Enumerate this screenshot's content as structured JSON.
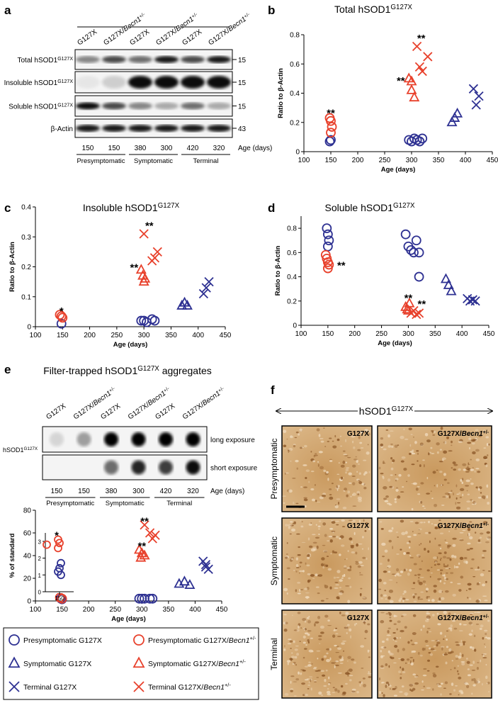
{
  "panel_labels": [
    "a",
    "b",
    "c",
    "d",
    "e",
    "f"
  ],
  "blot_a": {
    "lanes": [
      [
        {
          "text": "G127X"
        }
      ],
      [
        {
          "text": "G127X/"
        },
        {
          "text": "Becn1",
          "style": "italic"
        },
        {
          "text": "+/-",
          "style": "sup"
        }
      ],
      [
        {
          "text": "G127X"
        }
      ],
      [
        {
          "text": "G127X/"
        },
        {
          "text": "Becn1",
          "style": "italic"
        },
        {
          "text": "+/-",
          "style": "sup"
        }
      ],
      [
        {
          "text": "G127X"
        }
      ],
      [
        {
          "text": "G127X/"
        },
        {
          "text": "Becn1",
          "style": "italic"
        },
        {
          "text": "+/-",
          "style": "sup"
        }
      ]
    ],
    "rows": [
      {
        "label": [
          {
            "text": "Total hSOD1"
          },
          {
            "text": "G127X",
            "style": "sup"
          }
        ],
        "mw": "15"
      },
      {
        "label": [
          {
            "text": "Insoluble hSOD1"
          },
          {
            "text": "G127X",
            "style": "sup"
          }
        ],
        "mw": "15"
      },
      {
        "label": [
          {
            "text": "Soluble hSOD1"
          },
          {
            "text": "G127X",
            "style": "sup"
          }
        ],
        "mw": "15"
      },
      {
        "label": [
          {
            "text": "β-Actin"
          }
        ],
        "mw": "43"
      }
    ],
    "ages": [
      "150",
      "150",
      "380",
      "300",
      "420",
      "320"
    ],
    "age_label": "Age (days)",
    "stages": [
      "Presymptomatic",
      "Symptomatic",
      "Terminal"
    ]
  },
  "chart_data": [
    {
      "type": "scatter",
      "title": [
        {
          "text": "Total hSOD1"
        },
        {
          "text": "G127X",
          "style": "sup"
        }
      ],
      "xlabel": "Age (days)",
      "ylabel": "Ratio to β-Actin",
      "xlim": [
        100,
        450
      ],
      "xticks": [
        100,
        150,
        200,
        250,
        300,
        350,
        400,
        450
      ],
      "ylim": [
        0,
        0.8
      ],
      "yticks": [
        0,
        0.2,
        0.4,
        0.6,
        0.8
      ],
      "series": [
        {
          "x": [
            148,
            150,
            295,
            300,
            305,
            310,
            315,
            320
          ],
          "values": [
            0.07,
            0.08,
            0.08,
            0.07,
            0.09,
            0.08,
            0.07,
            0.09
          ]
        },
        {
          "x": [
            148,
            150,
            152,
            150
          ],
          "values": [
            0.23,
            0.21,
            0.17,
            0.13
          ]
        },
        {
          "x": [
            375,
            380,
            385
          ],
          "values": [
            0.2,
            0.23,
            0.26
          ]
        },
        {
          "x": [
            295,
            300,
            300,
            305
          ],
          "values": [
            0.5,
            0.48,
            0.42,
            0.37
          ]
        },
        {
          "x": [
            415,
            420,
            425
          ],
          "values": [
            0.43,
            0.32,
            0.38
          ]
        },
        {
          "x": [
            310,
            315,
            320,
            330
          ],
          "values": [
            0.72,
            0.58,
            0.55,
            0.65
          ]
        }
      ],
      "annotations": [
        {
          "text": "**",
          "x": 150,
          "y": 0.27
        },
        {
          "text": "**",
          "x": 318,
          "y": 0.78
        },
        {
          "text": "**",
          "x": 280,
          "y": 0.49
        }
      ]
    },
    {
      "type": "scatter",
      "title": [
        {
          "text": "Insoluble hSOD1"
        },
        {
          "text": "G127X",
          "style": "sup"
        }
      ],
      "xlabel": "Age (days)",
      "ylabel": "Ratio to β-Actin",
      "xlim": [
        100,
        450
      ],
      "xticks": [
        100,
        150,
        200,
        250,
        300,
        350,
        400,
        450
      ],
      "ylim": [
        0,
        0.4
      ],
      "yticks": [
        0,
        0.1,
        0.2,
        0.3,
        0.4
      ],
      "series": [
        {
          "x": [
            148,
            295,
            300,
            305,
            315,
            320
          ],
          "values": [
            0.01,
            0.02,
            0.02,
            0.015,
            0.025,
            0.02
          ]
        },
        {
          "x": [
            145,
            148,
            150
          ],
          "values": [
            0.04,
            0.035,
            0.03
          ]
        },
        {
          "x": [
            370,
            375,
            380
          ],
          "values": [
            0.07,
            0.08,
            0.07
          ]
        },
        {
          "x": [
            295,
            298,
            300,
            302
          ],
          "values": [
            0.19,
            0.17,
            0.15,
            0.16
          ]
        },
        {
          "x": [
            410,
            415,
            420
          ],
          "values": [
            0.11,
            0.13,
            0.15
          ]
        },
        {
          "x": [
            300,
            315,
            320,
            325
          ],
          "values": [
            0.31,
            0.22,
            0.23,
            0.25
          ]
        }
      ],
      "annotations": [
        {
          "text": "*",
          "x": 148,
          "y": 0.055
        },
        {
          "text": "**",
          "x": 310,
          "y": 0.34
        },
        {
          "text": "**",
          "x": 282,
          "y": 0.2
        }
      ]
    },
    {
      "type": "scatter",
      "title": [
        {
          "text": "Soluble hSOD1"
        },
        {
          "text": "G127X",
          "style": "sup"
        }
      ],
      "xlabel": "Age (days)",
      "ylabel": "Ratio to β-Actin",
      "xlim": [
        100,
        450
      ],
      "xticks": [
        100,
        150,
        200,
        250,
        300,
        350,
        400,
        450
      ],
      "ylim": [
        0,
        0.9
      ],
      "yticks": [
        0,
        0.2,
        0.4,
        0.6,
        0.8
      ],
      "series": [
        {
          "x": [
            148,
            150,
            152,
            150,
            295,
            300,
            305,
            310,
            315,
            320,
            320
          ],
          "values": [
            0.8,
            0.75,
            0.7,
            0.65,
            0.75,
            0.65,
            0.62,
            0.6,
            0.7,
            0.6,
            0.4
          ]
        },
        {
          "x": [
            146,
            148,
            150,
            152,
            150
          ],
          "values": [
            0.58,
            0.55,
            0.52,
            0.5,
            0.47
          ]
        },
        {
          "x": [
            370,
            375,
            380
          ],
          "values": [
            0.38,
            0.33,
            0.28
          ]
        },
        {
          "x": [
            295,
            298,
            300,
            302
          ],
          "values": [
            0.15,
            0.13,
            0.12,
            0.18
          ]
        },
        {
          "x": [
            410,
            415,
            420,
            425
          ],
          "values": [
            0.22,
            0.2,
            0.21,
            0.2
          ]
        },
        {
          "x": [
            305,
            310,
            315,
            320
          ],
          "values": [
            0.1,
            0.12,
            0.09,
            0.1
          ]
        }
      ],
      "annotations": [
        {
          "text": "**",
          "x": 175,
          "y": 0.5
        },
        {
          "text": "**",
          "x": 300,
          "y": 0.23
        },
        {
          "text": "**",
          "x": 325,
          "y": 0.18
        }
      ]
    },
    {
      "type": "scatter",
      "xlabel": "Age (days)",
      "ylabel": "% of standard",
      "xlim": [
        100,
        450
      ],
      "xticks": [
        100,
        150,
        200,
        250,
        300,
        350,
        400,
        450
      ],
      "ylim": [
        0,
        80
      ],
      "yticks": [
        0,
        20,
        40,
        60,
        80
      ],
      "series": [
        {
          "x": [
            148,
            150,
            295,
            300,
            305,
            315,
            320
          ],
          "values": [
            2,
            1.5,
            2,
            2,
            2,
            2,
            2
          ]
        },
        {
          "x": [
            146,
            150
          ],
          "values": [
            3,
            2
          ]
        },
        {
          "x": [
            370,
            380,
            390
          ],
          "values": [
            15,
            17,
            14
          ]
        },
        {
          "x": [
            295,
            300,
            305,
            298
          ],
          "values": [
            45,
            42,
            40,
            38
          ]
        },
        {
          "x": [
            415,
            420,
            425,
            420
          ],
          "values": [
            35,
            32,
            28,
            30
          ]
        },
        {
          "x": [
            305,
            315,
            320,
            325
          ],
          "values": [
            67,
            60,
            55,
            58
          ]
        }
      ],
      "annotations": [
        {
          "text": "**",
          "x": 305,
          "y": 71
        },
        {
          "text": "**",
          "x": 300,
          "y": 49
        }
      ]
    },
    {
      "type": "scatter",
      "xlim": [
        140,
        160
      ],
      "xticks": [
        150
      ],
      "ylim": [
        0,
        3.5
      ],
      "yticks": [
        0,
        1,
        2,
        3
      ],
      "series": [
        {
          "x": [
            151,
            150,
            149,
            151
          ],
          "values": [
            1.7,
            1.4,
            1.2,
            1.0
          ]
        },
        {
          "x": [
            141,
            149,
            150,
            149
          ],
          "values": [
            2.8,
            3.1,
            2.9,
            2.6
          ]
        },
        {
          "x": [],
          "values": []
        },
        {
          "x": [],
          "values": []
        },
        {
          "x": [],
          "values": []
        },
        {
          "x": [],
          "values": []
        }
      ],
      "annotations": [
        {
          "text": "*",
          "x": 148,
          "y": 3.4
        }
      ]
    }
  ],
  "blot_e": {
    "title": [
      {
        "text": "Filter-trapped hSOD1"
      },
      {
        "text": "G127X",
        "style": "sup"
      },
      {
        "text": " aggregates"
      }
    ],
    "lanes": [
      [
        {
          "text": "G127X"
        }
      ],
      [
        {
          "text": "G127X/"
        },
        {
          "text": "Becn1",
          "style": "italic"
        },
        {
          "text": "+/-",
          "style": "sup"
        }
      ],
      [
        {
          "text": "G127X"
        }
      ],
      [
        {
          "text": "G127X/"
        },
        {
          "text": "Becn1",
          "style": "italic"
        },
        {
          "text": "+/-",
          "style": "sup"
        }
      ],
      [
        {
          "text": "G127X"
        }
      ],
      [
        {
          "text": "G127X/"
        },
        {
          "text": "Becn1",
          "style": "italic"
        },
        {
          "text": "+/-",
          "style": "sup"
        }
      ]
    ],
    "target": [
      {
        "text": "hSOD1"
      },
      {
        "text": "G127X",
        "style": "sup"
      }
    ],
    "rows": [
      "long exposure",
      "short exposure"
    ],
    "ages": [
      "150",
      "150",
      "380",
      "300",
      "420",
      "320"
    ],
    "age_label": "Age (days)",
    "stages": [
      "Presymptomatic",
      "Symptomatic",
      "Terminal"
    ]
  },
  "legend": [
    {
      "label": [
        {
          "text": "Presymptomatic G127X"
        }
      ],
      "color": "#2e3192",
      "marker": "circle"
    },
    {
      "label": [
        {
          "text": "Presymptomatic G127X/"
        },
        {
          "text": "Becn1",
          "style": "italic"
        },
        {
          "text": "+/-",
          "style": "sup"
        }
      ],
      "color": "#e8412c",
      "marker": "circle"
    },
    {
      "label": [
        {
          "text": "Symptomatic G127X"
        }
      ],
      "color": "#2e3192",
      "marker": "triangle"
    },
    {
      "label": [
        {
          "text": "Symptomatic G127X/"
        },
        {
          "text": "Becn1",
          "style": "italic"
        },
        {
          "text": "+/-",
          "style": "sup"
        }
      ],
      "color": "#e8412c",
      "marker": "triangle"
    },
    {
      "label": [
        {
          "text": "Terminal G127X"
        }
      ],
      "color": "#2e3192",
      "marker": "cross"
    },
    {
      "label": [
        {
          "text": "Terminal G127X/"
        },
        {
          "text": "Becn1",
          "style": "italic"
        },
        {
          "text": "+/-",
          "style": "sup"
        }
      ],
      "color": "#e8412c",
      "marker": "cross"
    }
  ],
  "histology": {
    "header": [
      {
        "text": "hSOD1"
      },
      {
        "text": "G127X",
        "style": "sup"
      }
    ],
    "columns": [
      [
        {
          "text": "G127X"
        }
      ],
      [
        {
          "text": "G127X/"
        },
        {
          "text": "Becn1",
          "style": "italic"
        },
        {
          "text": "+/-",
          "style": "sup"
        }
      ]
    ],
    "rows": [
      "Presymptomatic",
      "Symptomatic",
      "Terminal"
    ]
  }
}
